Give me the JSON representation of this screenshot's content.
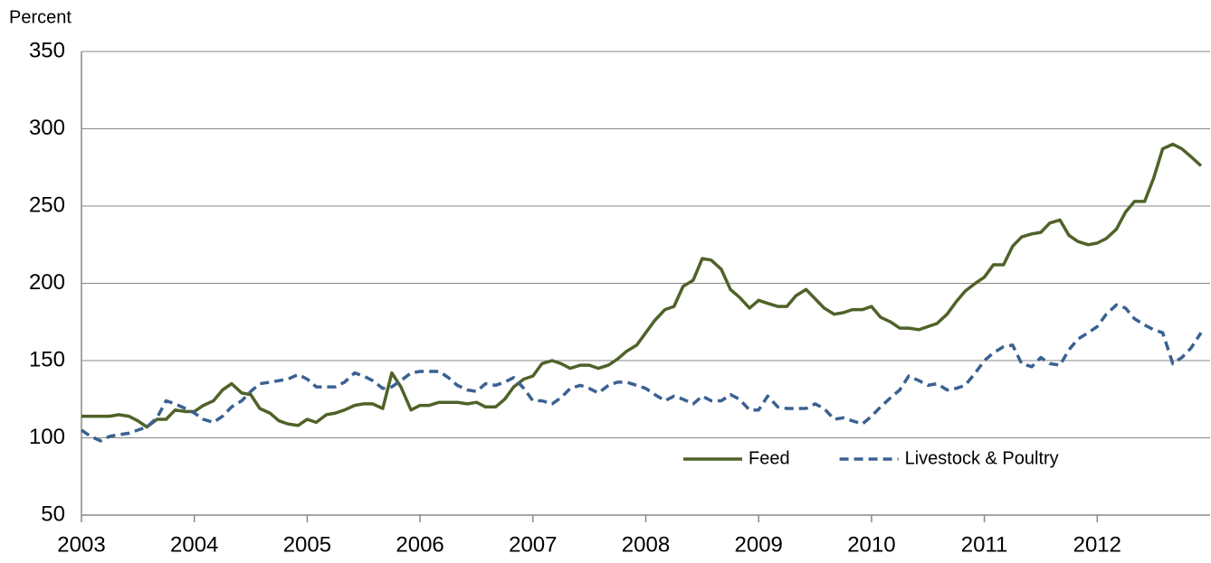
{
  "chart_data": {
    "type": "line",
    "y_label": "Percent",
    "x": [
      2003.0,
      2003.08,
      2003.17,
      2003.25,
      2003.33,
      2003.42,
      2003.5,
      2003.58,
      2003.67,
      2003.75,
      2003.83,
      2003.92,
      2004.0,
      2004.08,
      2004.17,
      2004.25,
      2004.33,
      2004.42,
      2004.5,
      2004.58,
      2004.67,
      2004.75,
      2004.83,
      2004.92,
      2005.0,
      2005.08,
      2005.17,
      2005.25,
      2005.33,
      2005.42,
      2005.5,
      2005.58,
      2005.67,
      2005.75,
      2005.83,
      2005.92,
      2006.0,
      2006.08,
      2006.17,
      2006.25,
      2006.33,
      2006.42,
      2006.5,
      2006.58,
      2006.67,
      2006.75,
      2006.83,
      2006.92,
      2007.0,
      2007.08,
      2007.17,
      2007.25,
      2007.33,
      2007.42,
      2007.5,
      2007.58,
      2007.67,
      2007.75,
      2007.83,
      2007.92,
      2008.0,
      2008.08,
      2008.17,
      2008.25,
      2008.33,
      2008.42,
      2008.5,
      2008.58,
      2008.67,
      2008.75,
      2008.83,
      2008.92,
      2009.0,
      2009.08,
      2009.17,
      2009.25,
      2009.33,
      2009.42,
      2009.5,
      2009.58,
      2009.67,
      2009.75,
      2009.83,
      2009.92,
      2010.0,
      2010.08,
      2010.17,
      2010.25,
      2010.33,
      2010.42,
      2010.5,
      2010.58,
      2010.67,
      2010.75,
      2010.83,
      2010.92,
      2011.0,
      2011.08,
      2011.17,
      2011.25,
      2011.33,
      2011.42,
      2011.5,
      2011.58,
      2011.67,
      2011.75,
      2011.83,
      2011.92,
      2012.0,
      2012.08,
      2012.17,
      2012.25,
      2012.33,
      2012.42,
      2012.5,
      2012.58,
      2012.67,
      2012.75,
      2012.83,
      2012.92
    ],
    "series": [
      {
        "name": "Feed",
        "color": "#4f6228",
        "style": "solid",
        "values": [
          114,
          114,
          114,
          114,
          115,
          114,
          111,
          107,
          112,
          112,
          118,
          117,
          117,
          121,
          124,
          131,
          135,
          129,
          128,
          119,
          116,
          111,
          109,
          108,
          112,
          110,
          115,
          116,
          118,
          121,
          122,
          122,
          119,
          142,
          133,
          118,
          121,
          121,
          123,
          123,
          123,
          122,
          123,
          120,
          120,
          125,
          133,
          138,
          140,
          148,
          150,
          148,
          145,
          147,
          147,
          145,
          147,
          151,
          156,
          160,
          168,
          176,
          183,
          185,
          198,
          202,
          216,
          215,
          209,
          196,
          191,
          184,
          189,
          187,
          185,
          185,
          192,
          196,
          190,
          184,
          180,
          181,
          183,
          183,
          185,
          178,
          175,
          171,
          171,
          170,
          172,
          174,
          180,
          188,
          195,
          200,
          204,
          212,
          212,
          224,
          230,
          232,
          233,
          239,
          241,
          231,
          227,
          225,
          226,
          229,
          235,
          246,
          253,
          253,
          268,
          287,
          290,
          287,
          282,
          276
        ]
      },
      {
        "name": "Livestock & Poultry",
        "color": "#3a6191",
        "style": "dashed",
        "values": [
          105,
          101,
          98,
          101,
          102,
          103,
          105,
          107,
          113,
          124,
          122,
          119,
          116,
          112,
          110,
          114,
          120,
          124,
          130,
          135,
          136,
          137,
          138,
          141,
          138,
          133,
          133,
          133,
          136,
          142,
          140,
          137,
          132,
          133,
          137,
          142,
          143,
          143,
          143,
          139,
          134,
          131,
          130,
          135,
          134,
          136,
          139,
          132,
          124,
          124,
          122,
          126,
          132,
          134,
          132,
          129,
          134,
          136,
          136,
          134,
          132,
          128,
          124,
          127,
          125,
          122,
          127,
          124,
          124,
          128,
          125,
          118,
          118,
          127,
          120,
          119,
          119,
          119,
          122,
          119,
          112,
          113,
          111,
          109,
          114,
          120,
          126,
          131,
          140,
          137,
          134,
          135,
          131,
          132,
          134,
          142,
          150,
          155,
          159,
          160,
          148,
          146,
          152,
          148,
          147,
          157,
          164,
          168,
          172,
          180,
          186,
          184,
          177,
          173,
          170,
          168,
          148,
          152,
          158,
          168
        ]
      }
    ],
    "xlim": [
      2003,
      2013
    ],
    "xticks": [
      2003,
      2004,
      2005,
      2006,
      2007,
      2008,
      2009,
      2010,
      2011,
      2012
    ],
    "ylim": [
      50,
      350
    ],
    "yticks": [
      50,
      100,
      150,
      200,
      250,
      300,
      350
    ],
    "grid": true,
    "legend": "lower right"
  }
}
